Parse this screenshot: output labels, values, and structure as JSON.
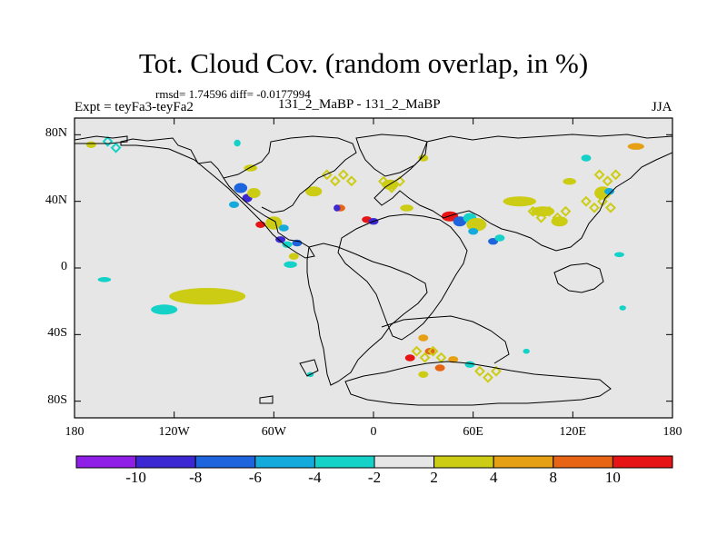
{
  "title": "Tot. Cloud Cov. (random overlap, in %)",
  "stats": "rmsd= 1.74596 diff= -0.0177994",
  "experiment": "Expt = teyFa3-teyFa2",
  "case": "131_2_MaBP - 131_2_MaBP",
  "season": "JJA",
  "axes": {
    "y_ticks": [
      {
        "label": "80N",
        "lat": 80
      },
      {
        "label": "40N",
        "lat": 40
      },
      {
        "label": "0",
        "lat": 0
      },
      {
        "label": "40S",
        "lat": -40
      },
      {
        "label": "80S",
        "lat": -80
      }
    ],
    "x_ticks": [
      {
        "label": "180",
        "lon": -180
      },
      {
        "label": "120W",
        "lon": -120
      },
      {
        "label": "60W",
        "lon": -60
      },
      {
        "label": "0",
        "lon": 0
      },
      {
        "label": "60E",
        "lon": 60
      },
      {
        "label": "120E",
        "lon": 120
      },
      {
        "label": "180",
        "lon": 180
      }
    ],
    "lon_range": [
      -180,
      180
    ],
    "lat_range": [
      -90,
      90
    ]
  },
  "colorbar": {
    "colors": [
      "#8f1ee6",
      "#3c28d2",
      "#1e64dc",
      "#14aadc",
      "#14d2c8",
      "#e6e6e6",
      "#cccc14",
      "#e6a014",
      "#e66414",
      "#e61414"
    ],
    "labels": [
      "-10",
      "-8",
      "-6",
      "-4",
      "-2",
      "2",
      "4",
      "8",
      "10"
    ]
  },
  "colors": {
    "background": "#e6e6e6",
    "coast": "#000000"
  },
  "anomalies": [
    {
      "lon": -100,
      "lat": -17,
      "rx": 23,
      "ry": 5,
      "c": 6
    },
    {
      "lon": -126,
      "lat": -25,
      "rx": 8,
      "ry": 3,
      "c": 4
    },
    {
      "lon": -162,
      "lat": -7,
      "rx": 4,
      "ry": 1.5,
      "c": 4
    },
    {
      "lon": -50,
      "lat": 2,
      "rx": 4,
      "ry": 2,
      "c": 4
    },
    {
      "lon": -48,
      "lat": 7,
      "rx": 3,
      "ry": 2,
      "c": 6
    },
    {
      "lon": -80,
      "lat": 48,
      "rx": 4,
      "ry": 3,
      "c": 2
    },
    {
      "lon": -76,
      "lat": 42,
      "rx": 3,
      "ry": 2.5,
      "c": 1
    },
    {
      "lon": -72,
      "lat": 45,
      "rx": 4,
      "ry": 3,
      "c": 6
    },
    {
      "lon": -84,
      "lat": 38,
      "rx": 3,
      "ry": 2,
      "c": 3
    },
    {
      "lon": -68,
      "lat": 26,
      "rx": 3,
      "ry": 2,
      "c": 9
    },
    {
      "lon": -60,
      "lat": 27,
      "rx": 5,
      "ry": 4,
      "c": 6
    },
    {
      "lon": -56,
      "lat": 17,
      "rx": 3,
      "ry": 2,
      "c": 1
    },
    {
      "lon": -54,
      "lat": 24,
      "rx": 3,
      "ry": 2,
      "c": 3
    },
    {
      "lon": -46,
      "lat": 15,
      "rx": 3,
      "ry": 2,
      "c": 2
    },
    {
      "lon": -52,
      "lat": 14,
      "rx": 3,
      "ry": 2,
      "c": 4
    },
    {
      "lon": -74,
      "lat": 60,
      "rx": 4,
      "ry": 2,
      "c": 6
    },
    {
      "lon": -36,
      "lat": 46,
      "rx": 5,
      "ry": 3,
      "c": 6
    },
    {
      "lon": -20,
      "lat": 36,
      "rx": 3,
      "ry": 2,
      "c": 8
    },
    {
      "lon": -22,
      "lat": 36,
      "rx": 2,
      "ry": 2,
      "c": 1
    },
    {
      "lon": -4,
      "lat": 29,
      "rx": 3,
      "ry": 2,
      "c": 9
    },
    {
      "lon": 0,
      "lat": 28,
      "rx": 3,
      "ry": 2,
      "c": 1
    },
    {
      "lon": 10,
      "lat": 50,
      "rx": 5,
      "ry": 3,
      "c": 6
    },
    {
      "lon": 20,
      "lat": 36,
      "rx": 4,
      "ry": 2,
      "c": 6
    },
    {
      "lon": 46,
      "lat": 31,
      "rx": 5,
      "ry": 3,
      "c": 9
    },
    {
      "lon": 52,
      "lat": 28,
      "rx": 4,
      "ry": 3,
      "c": 2
    },
    {
      "lon": 58,
      "lat": 30,
      "rx": 4,
      "ry": 3,
      "c": 4
    },
    {
      "lon": 62,
      "lat": 26,
      "rx": 6,
      "ry": 4,
      "c": 6
    },
    {
      "lon": 60,
      "lat": 22,
      "rx": 3,
      "ry": 2,
      "c": 3
    },
    {
      "lon": 72,
      "lat": 16,
      "rx": 3,
      "ry": 2,
      "c": 2
    },
    {
      "lon": 76,
      "lat": 18,
      "rx": 3,
      "ry": 2,
      "c": 4
    },
    {
      "lon": 88,
      "lat": 40,
      "rx": 10,
      "ry": 3,
      "c": 6
    },
    {
      "lon": 102,
      "lat": 34,
      "rx": 7,
      "ry": 3,
      "c": 6
    },
    {
      "lon": 112,
      "lat": 28,
      "rx": 5,
      "ry": 3,
      "c": 6
    },
    {
      "lon": 118,
      "lat": 52,
      "rx": 4,
      "ry": 2,
      "c": 6
    },
    {
      "lon": 138,
      "lat": 45,
      "rx": 5,
      "ry": 4,
      "c": 6
    },
    {
      "lon": 142,
      "lat": 46,
      "rx": 3,
      "ry": 2,
      "c": 3
    },
    {
      "lon": 158,
      "lat": 73,
      "rx": 5,
      "ry": 2,
      "c": 7
    },
    {
      "lon": 128,
      "lat": 66,
      "rx": 3,
      "ry": 2,
      "c": 4
    },
    {
      "lon": 30,
      "lat": 66,
      "rx": 3,
      "ry": 2,
      "c": 6
    },
    {
      "lon": -170,
      "lat": 74,
      "rx": 3,
      "ry": 2,
      "c": 6
    },
    {
      "lon": -82,
      "lat": 75,
      "rx": 2,
      "ry": 2,
      "c": 4
    },
    {
      "lon": 148,
      "lat": 8,
      "rx": 3,
      "ry": 1.5,
      "c": 4
    },
    {
      "lon": 150,
      "lat": -24,
      "rx": 2,
      "ry": 1.5,
      "c": 4
    },
    {
      "lon": 30,
      "lat": -42,
      "rx": 3,
      "ry": 2,
      "c": 7
    },
    {
      "lon": 34,
      "lat": -50,
      "rx": 3,
      "ry": 2,
      "c": 8
    },
    {
      "lon": 22,
      "lat": -54,
      "rx": 3,
      "ry": 2,
      "c": 9
    },
    {
      "lon": 40,
      "lat": -60,
      "rx": 3,
      "ry": 2,
      "c": 8
    },
    {
      "lon": 48,
      "lat": -55,
      "rx": 3,
      "ry": 2,
      "c": 7
    },
    {
      "lon": 30,
      "lat": -64,
      "rx": 3,
      "ry": 2,
      "c": 6
    },
    {
      "lon": 58,
      "lat": -58,
      "rx": 3,
      "ry": 2,
      "c": 4
    },
    {
      "lon": 92,
      "lat": -50,
      "rx": 2,
      "ry": 1.5,
      "c": 4
    },
    {
      "lon": -38,
      "lat": -64,
      "rx": 2,
      "ry": 1.5,
      "c": 4
    }
  ],
  "diamond_groups": [
    {
      "lon": -28,
      "lat": 56,
      "c": 6,
      "n": 4
    },
    {
      "lon": 96,
      "lat": 34,
      "c": 6,
      "n": 5
    },
    {
      "lon": 128,
      "lat": 40,
      "c": 6,
      "n": 4
    },
    {
      "lon": 6,
      "lat": 52,
      "c": 6,
      "n": 3
    },
    {
      "lon": 136,
      "lat": 56,
      "c": 6,
      "n": 3
    },
    {
      "lon": 26,
      "lat": -50,
      "c": 6,
      "n": 4
    },
    {
      "lon": 64,
      "lat": -62,
      "c": 6,
      "n": 3
    },
    {
      "lon": -160,
      "lat": 76,
      "c": 4,
      "n": 2
    }
  ]
}
